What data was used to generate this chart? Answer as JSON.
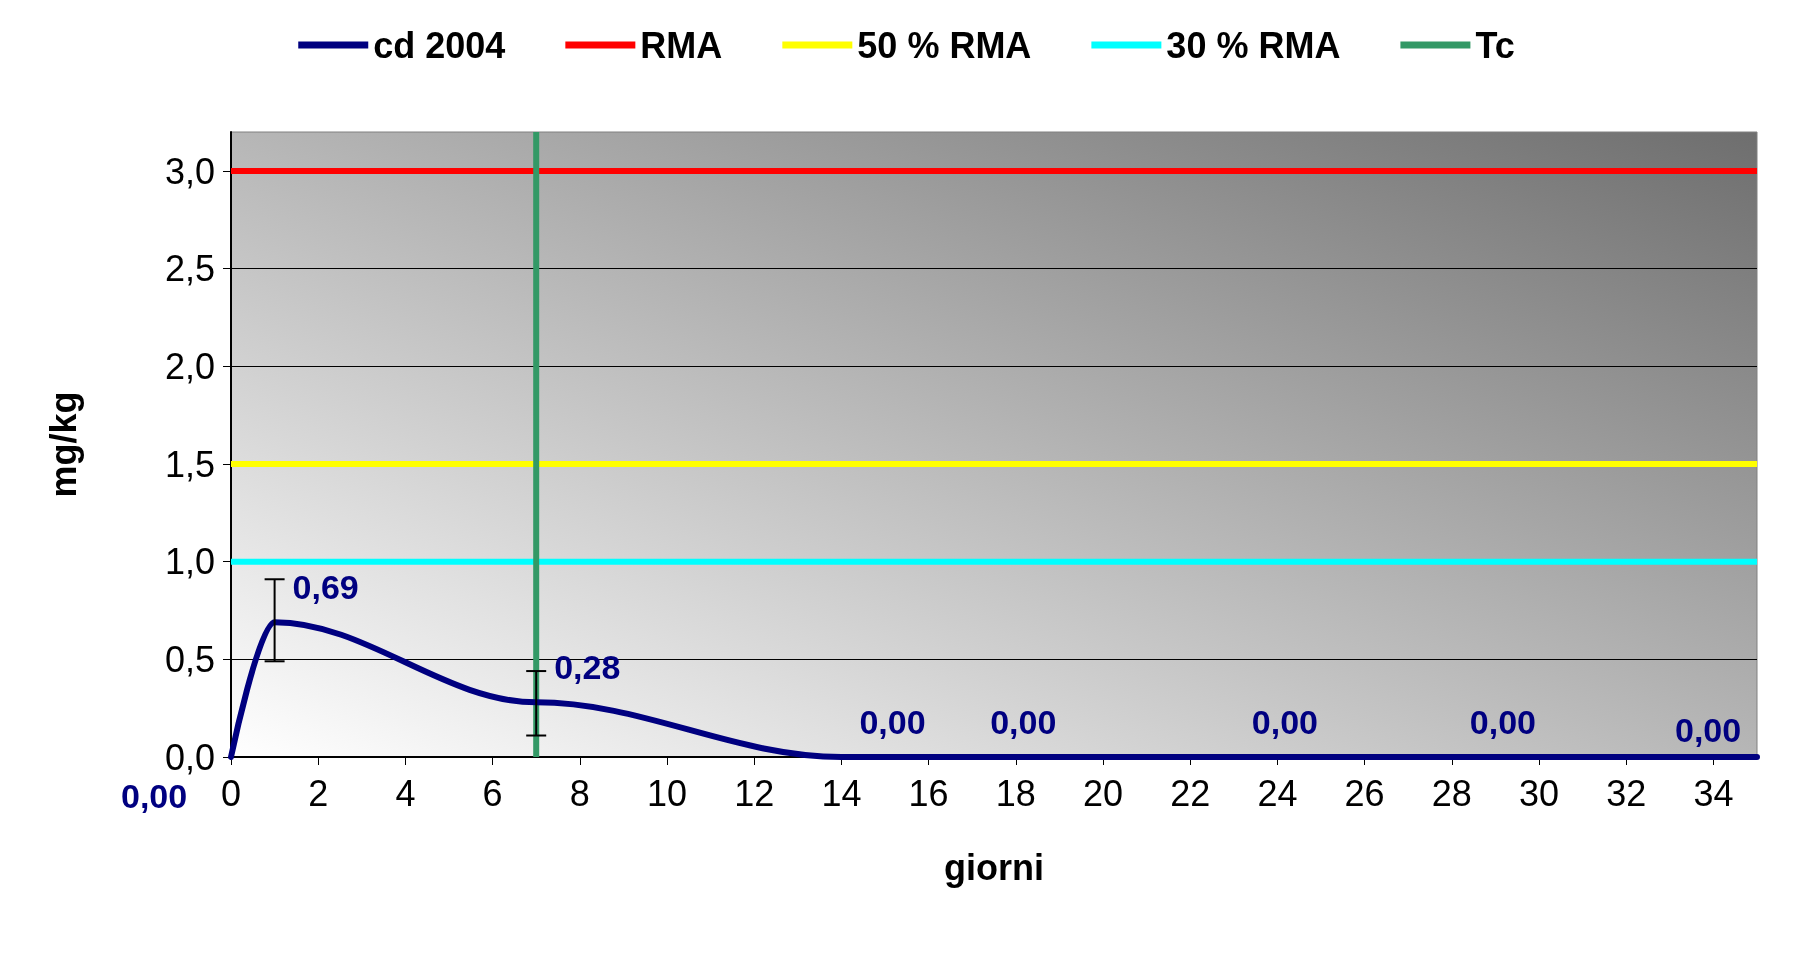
{
  "chart_data": {
    "type": "line",
    "xlabel": "giorni",
    "ylabel": "mg/kg",
    "xlim": [
      0,
      35
    ],
    "xticks": [
      0,
      2,
      4,
      6,
      8,
      10,
      12,
      14,
      16,
      18,
      20,
      22,
      24,
      26,
      28,
      30,
      32,
      34
    ],
    "ylim": [
      0,
      3.2
    ],
    "yticks": [
      {
        "value": 0,
        "label": "0,0"
      },
      {
        "value": 0.5,
        "label": "0,5"
      },
      {
        "value": 1,
        "label": "1,0"
      },
      {
        "value": 1.5,
        "label": "1,5"
      },
      {
        "value": 2,
        "label": "2,0"
      },
      {
        "value": 2.5,
        "label": "2,5"
      },
      {
        "value": 3,
        "label": "3,0"
      }
    ],
    "series": [
      {
        "name": "cd 2004",
        "color": "#000080",
        "x": [
          0,
          1,
          7,
          14,
          17,
          23,
          28,
          35
        ],
        "values": [
          0,
          0.69,
          0.28,
          0,
          0,
          0,
          0,
          0
        ],
        "value_labels": [
          "0,00",
          "0,69",
          "0,28",
          "0,00",
          "0,00",
          "0,00",
          "0,00",
          "0,00"
        ],
        "errors": [
          null,
          [
            0.49,
            0.91
          ],
          [
            0.11,
            0.44
          ],
          null,
          null,
          null,
          null,
          null
        ]
      }
    ],
    "ref_lines": [
      {
        "axis": "y",
        "value": 3,
        "label": "RMA",
        "color": "#ff0000"
      },
      {
        "axis": "y",
        "value": 1.5,
        "label": "50 % RMA",
        "color": "#ffff00"
      },
      {
        "axis": "y",
        "value": 1,
        "label": "30 % RMA",
        "color": "#00ffff"
      },
      {
        "axis": "x",
        "value": 7,
        "label": "Tc",
        "color": "#339966"
      }
    ],
    "grid": "y",
    "legend": "top",
    "marker": "none",
    "line_style": "solid"
  }
}
